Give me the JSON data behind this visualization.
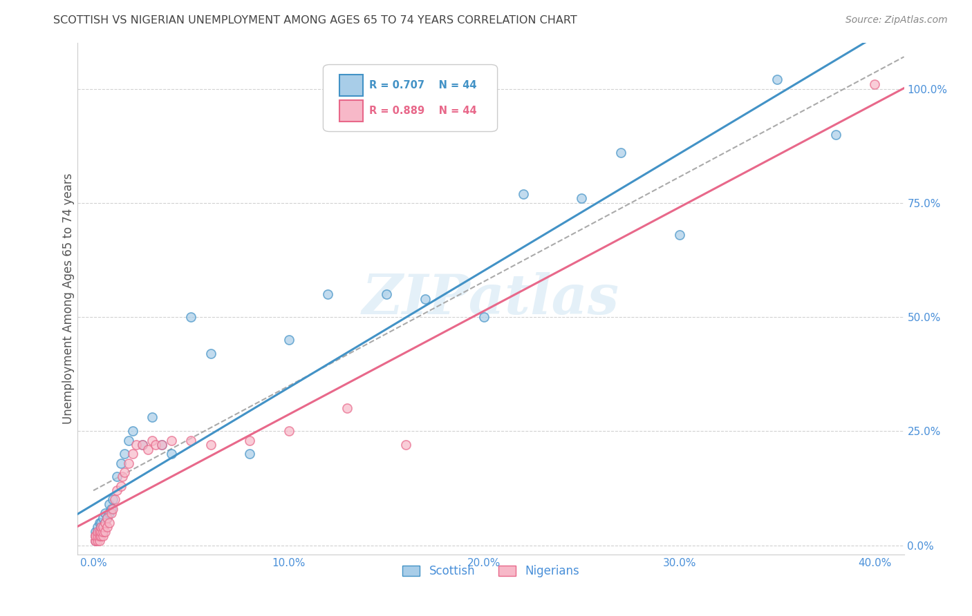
{
  "title": "SCOTTISH VS NIGERIAN UNEMPLOYMENT AMONG AGES 65 TO 74 YEARS CORRELATION CHART",
  "source": "Source: ZipAtlas.com",
  "ylabel_label": "Unemployment Among Ages 65 to 74 years",
  "x_ticks": [
    0.0,
    0.1,
    0.2,
    0.3,
    0.4
  ],
  "x_tick_labels": [
    "0.0%",
    "10.0%",
    "20.0%",
    "30.0%",
    "40.0%"
  ],
  "y_ticks": [
    0.0,
    0.25,
    0.5,
    0.75,
    1.0
  ],
  "y_tick_labels": [
    "0.0%",
    "25.0%",
    "50.0%",
    "75.0%",
    "100.0%"
  ],
  "xlim": [
    -0.008,
    0.415
  ],
  "ylim": [
    -0.02,
    1.1
  ],
  "scottish_color": "#a8cde8",
  "nigerian_color": "#f7b8c8",
  "scottish_line_color": "#4292c6",
  "nigerian_line_color": "#e8688a",
  "ref_line_color": "#aaaaaa",
  "background_color": "#ffffff",
  "grid_color": "#cccccc",
  "title_color": "#444444",
  "ylabel_color": "#555555",
  "tick_label_color": "#4a90d9",
  "scottish_x": [
    0.001,
    0.001,
    0.001,
    0.002,
    0.002,
    0.002,
    0.003,
    0.003,
    0.003,
    0.004,
    0.004,
    0.005,
    0.005,
    0.005,
    0.006,
    0.006,
    0.007,
    0.008,
    0.008,
    0.009,
    0.01,
    0.012,
    0.014,
    0.016,
    0.018,
    0.02,
    0.025,
    0.03,
    0.035,
    0.04,
    0.05,
    0.06,
    0.08,
    0.1,
    0.12,
    0.15,
    0.17,
    0.2,
    0.22,
    0.25,
    0.27,
    0.3,
    0.35,
    0.38
  ],
  "scottish_y": [
    0.01,
    0.02,
    0.03,
    0.02,
    0.03,
    0.04,
    0.02,
    0.03,
    0.05,
    0.04,
    0.05,
    0.03,
    0.04,
    0.06,
    0.05,
    0.07,
    0.06,
    0.07,
    0.09,
    0.08,
    0.1,
    0.15,
    0.18,
    0.2,
    0.23,
    0.25,
    0.22,
    0.28,
    0.22,
    0.2,
    0.5,
    0.42,
    0.2,
    0.45,
    0.55,
    0.55,
    0.54,
    0.5,
    0.77,
    0.76,
    0.86,
    0.68,
    1.02,
    0.9
  ],
  "nigerian_x": [
    0.001,
    0.001,
    0.001,
    0.001,
    0.002,
    0.002,
    0.002,
    0.003,
    0.003,
    0.003,
    0.004,
    0.004,
    0.004,
    0.005,
    0.005,
    0.005,
    0.006,
    0.006,
    0.007,
    0.007,
    0.008,
    0.009,
    0.01,
    0.011,
    0.012,
    0.014,
    0.015,
    0.016,
    0.018,
    0.02,
    0.022,
    0.025,
    0.028,
    0.03,
    0.032,
    0.035,
    0.04,
    0.05,
    0.06,
    0.08,
    0.1,
    0.13,
    0.16,
    0.4
  ],
  "nigerian_y": [
    0.01,
    0.01,
    0.02,
    0.02,
    0.01,
    0.02,
    0.03,
    0.01,
    0.02,
    0.03,
    0.02,
    0.03,
    0.04,
    0.02,
    0.03,
    0.04,
    0.03,
    0.05,
    0.04,
    0.06,
    0.05,
    0.07,
    0.08,
    0.1,
    0.12,
    0.13,
    0.15,
    0.16,
    0.18,
    0.2,
    0.22,
    0.22,
    0.21,
    0.23,
    0.22,
    0.22,
    0.23,
    0.23,
    0.22,
    0.23,
    0.25,
    0.3,
    0.22,
    1.01
  ],
  "ref_line_x": [
    0.0,
    0.415
  ],
  "ref_line_y": [
    0.12,
    1.07
  ]
}
